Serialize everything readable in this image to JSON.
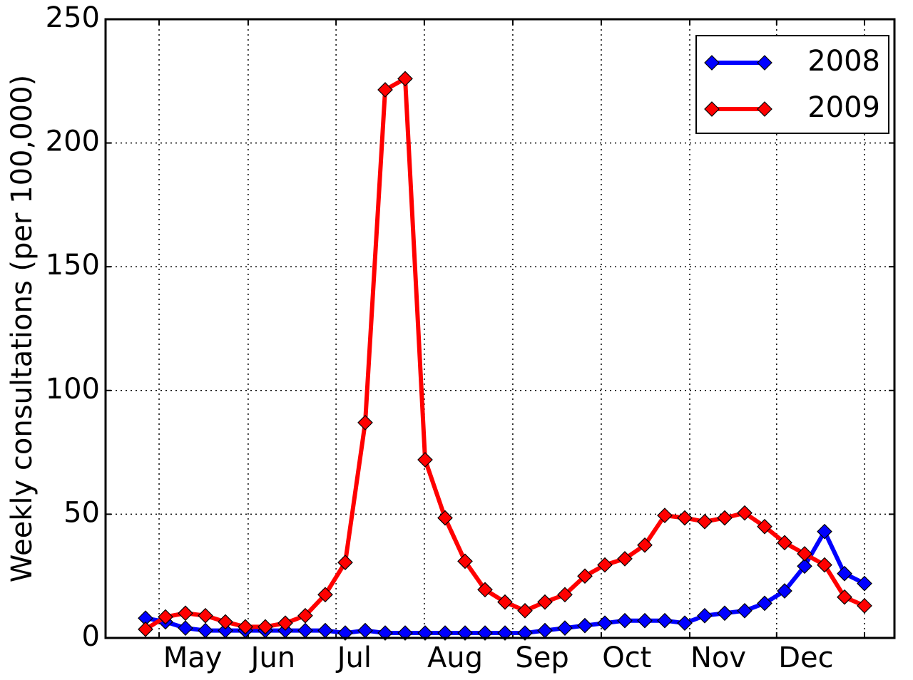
{
  "chart_data": {
    "type": "line",
    "y_label": "Weekly consultations (per 100,000)",
    "x": [
      0,
      1,
      2,
      3,
      4,
      5,
      6,
      7,
      8,
      9,
      10,
      11,
      12,
      13,
      14,
      15,
      16,
      17,
      18,
      19,
      20,
      21,
      22,
      23,
      24,
      25,
      26,
      27,
      28,
      29,
      30,
      31,
      32,
      33,
      34,
      35,
      36
    ],
    "xlim": [
      -2,
      37.5
    ],
    "xticks": [
      0.68,
      5.14,
      9.54,
      13.96,
      18.39,
      22.82,
      27.25,
      31.6,
      36
    ],
    "xtick_labels": [
      {
        "value": 2.36,
        "label": "May"
      },
      {
        "value": 6.39,
        "label": "Jun"
      },
      {
        "value": 10.46,
        "label": "Jul"
      },
      {
        "value": 15.5,
        "label": "Aug"
      },
      {
        "value": 19.86,
        "label": "Sep"
      },
      {
        "value": 24.1,
        "label": "Oct"
      },
      {
        "value": 28.68,
        "label": "Nov"
      },
      {
        "value": 33.07,
        "label": "Dec"
      }
    ],
    "ylim": [
      0,
      250
    ],
    "yticks": [
      0,
      50,
      100,
      150,
      200,
      250
    ],
    "grid": true,
    "legend": "upper right",
    "marker": "diamond",
    "series": [
      {
        "name": "2008",
        "color": "#0000ff",
        "values": [
          8,
          6.5,
          4,
          3,
          3,
          3,
          3,
          3,
          3,
          3,
          2,
          3,
          2,
          2,
          2,
          2,
          2,
          2,
          2,
          2,
          3,
          4,
          5,
          6,
          7,
          7,
          7,
          6,
          9,
          10,
          11,
          14,
          19,
          29,
          43,
          26,
          22
        ]
      },
      {
        "name": "2009",
        "color": "#ff0000",
        "values": [
          3.5,
          8.5,
          10,
          9,
          6.5,
          4.5,
          4.5,
          6,
          9,
          17.5,
          30.5,
          87,
          221.5,
          226,
          72,
          48.5,
          31,
          19.5,
          14.5,
          11,
          14.5,
          17.5,
          25,
          29.5,
          32,
          37.5,
          49.5,
          48.5,
          47,
          48.5,
          50.5,
          45,
          38.5,
          34,
          29.5,
          16.5,
          13
        ]
      }
    ]
  }
}
